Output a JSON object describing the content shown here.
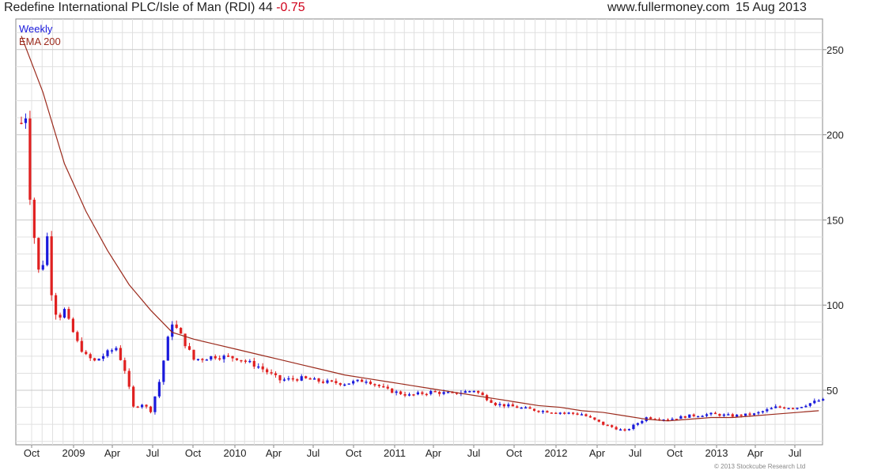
{
  "header": {
    "title": "Redefine International PLC/Isle of Man (RDI)",
    "price": "44",
    "change": "-0.75",
    "site": "www.fullermoney.com",
    "date": "15 Aug 2013"
  },
  "legend": {
    "weekly": "Weekly",
    "ema": "EMA 200"
  },
  "copyright": "© 2013 Stockcube Research Ltd",
  "colors": {
    "up": "#1a1adc",
    "down": "#e02020",
    "ema": "#9b2a1c",
    "grid": "#e0e0e0",
    "frame": "#888888"
  },
  "chart_data": {
    "type": "candlestick",
    "period": "weekly",
    "yaxis": {
      "side": "right",
      "ticks": [
        50,
        100,
        150,
        200,
        250
      ],
      "ylim": [
        18,
        268
      ]
    },
    "xaxis": {
      "ticks": [
        "Oct",
        "2009",
        "Apr",
        "Jul",
        "Oct",
        "2010",
        "Apr",
        "Jul",
        "Oct",
        "2011",
        "Apr",
        "Jul",
        "Oct",
        "2012",
        "Apr",
        "Jul",
        "Oct",
        "2013",
        "Apr",
        "Jul"
      ]
    },
    "grid": true,
    "legend_position": "top-left",
    "series": [
      {
        "name": "Weekly",
        "kind": "ohlc",
        "anchors": [
          [
            0,
            207
          ],
          [
            1,
            212
          ],
          [
            2,
            165
          ],
          [
            3,
            140
          ],
          [
            4,
            120
          ],
          [
            5,
            125
          ],
          [
            6,
            140
          ],
          [
            7,
            108
          ],
          [
            8,
            96
          ],
          [
            9,
            94
          ],
          [
            10,
            97
          ],
          [
            11,
            90
          ],
          [
            13,
            78
          ],
          [
            15,
            70
          ],
          [
            17,
            67
          ],
          [
            20,
            72
          ],
          [
            22,
            75
          ],
          [
            24,
            62
          ],
          [
            26,
            40
          ],
          [
            28,
            42
          ],
          [
            30,
            38
          ],
          [
            32,
            55
          ],
          [
            34,
            80
          ],
          [
            35,
            90
          ],
          [
            37,
            82
          ],
          [
            40,
            68
          ],
          [
            45,
            70
          ],
          [
            50,
            69
          ],
          [
            55,
            64
          ],
          [
            60,
            56
          ],
          [
            65,
            57
          ],
          [
            70,
            55
          ],
          [
            75,
            54
          ],
          [
            80,
            56
          ],
          [
            85,
            50
          ],
          [
            90,
            47
          ],
          [
            95,
            49
          ],
          [
            100,
            48
          ],
          [
            105,
            50
          ],
          [
            110,
            42
          ],
          [
            115,
            40
          ],
          [
            120,
            38
          ],
          [
            125,
            37
          ],
          [
            130,
            36
          ],
          [
            135,
            30
          ],
          [
            140,
            26
          ],
          [
            145,
            34
          ],
          [
            150,
            33
          ],
          [
            155,
            35
          ],
          [
            160,
            36
          ],
          [
            165,
            35
          ],
          [
            170,
            36
          ],
          [
            175,
            40
          ],
          [
            180,
            40
          ],
          [
            185,
            44
          ]
        ]
      },
      {
        "name": "EMA 200",
        "kind": "line",
        "points": [
          [
            0,
            258
          ],
          [
            5,
            225
          ],
          [
            10,
            183
          ],
          [
            15,
            155
          ],
          [
            20,
            132
          ],
          [
            25,
            112
          ],
          [
            30,
            97
          ],
          [
            35,
            84
          ],
          [
            40,
            80
          ],
          [
            45,
            77
          ],
          [
            50,
            74
          ],
          [
            55,
            71
          ],
          [
            60,
            68
          ],
          [
            65,
            65
          ],
          [
            70,
            62
          ],
          [
            75,
            59
          ],
          [
            80,
            57
          ],
          [
            85,
            55
          ],
          [
            90,
            53
          ],
          [
            95,
            51
          ],
          [
            100,
            49
          ],
          [
            105,
            47
          ],
          [
            110,
            45
          ],
          [
            115,
            43
          ],
          [
            120,
            41
          ],
          [
            125,
            40
          ],
          [
            130,
            38
          ],
          [
            135,
            37
          ],
          [
            140,
            35
          ],
          [
            145,
            33
          ],
          [
            150,
            32
          ],
          [
            155,
            33
          ],
          [
            160,
            34
          ],
          [
            165,
            34
          ],
          [
            170,
            35
          ],
          [
            175,
            36
          ],
          [
            180,
            37
          ],
          [
            185,
            38
          ]
        ]
      }
    ]
  }
}
